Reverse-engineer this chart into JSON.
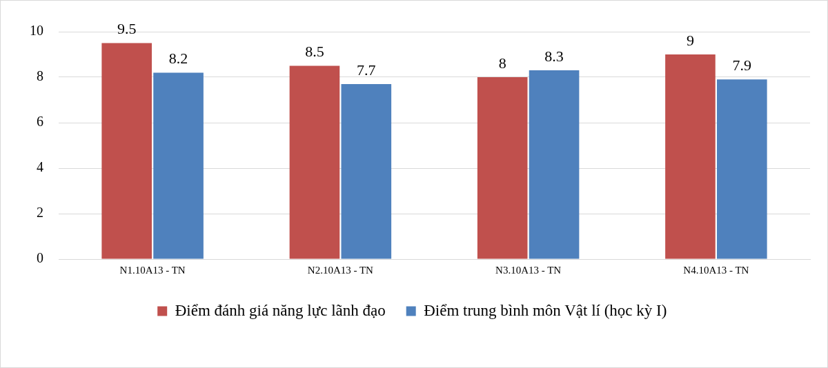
{
  "chart_data": {
    "type": "bar",
    "categories": [
      "N1.10A13 - TN",
      "N2.10A13 - TN",
      "N3.10A13 - TN",
      "N4.10A13 - TN"
    ],
    "series": [
      {
        "name": "Điểm đánh giá năng lực lãnh đạo",
        "color": "#c0504d",
        "values": [
          9.5,
          8.5,
          8,
          9
        ]
      },
      {
        "name": "Điểm trung bình môn Vật lí (học kỳ I)",
        "color": "#4f81bd",
        "values": [
          8.2,
          7.7,
          8.3,
          7.9
        ]
      }
    ],
    "ylim": [
      0,
      10
    ],
    "yticks": [
      0,
      2,
      4,
      6,
      8,
      10
    ],
    "grid": "y",
    "legend": "bottom",
    "data_labels": true
  }
}
